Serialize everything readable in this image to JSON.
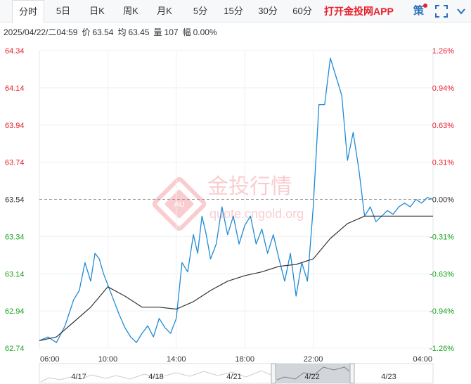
{
  "tabs": [
    {
      "label": "分时",
      "active": true
    },
    {
      "label": "5日",
      "active": false
    },
    {
      "label": "日K",
      "active": false
    },
    {
      "label": "周K",
      "active": false
    },
    {
      "label": "月K",
      "active": false
    },
    {
      "label": "5分",
      "active": false
    },
    {
      "label": "15分",
      "active": false
    },
    {
      "label": "30分",
      "active": false
    },
    {
      "label": "60分",
      "active": false
    }
  ],
  "app_link": "打开金投网APP",
  "policy_icon": "策",
  "icons": {
    "fullscreen": "fullscreen-icon",
    "more": "chevron-down-icon"
  },
  "info": {
    "datetime": "2025/04/22/二04:59",
    "price_label": "价",
    "price": "63.54",
    "avg_label": "均",
    "avg": "63.45",
    "volume_label": "量",
    "volume": "107",
    "change_label": "幅",
    "change": "0.00%"
  },
  "watermark": {
    "cn": "金投行情",
    "en": "quote.cngold.org",
    "logo": "AU"
  },
  "colors": {
    "up": "#e8202c",
    "down": "#17a31b",
    "neutral": "#333333",
    "price_line": "#1f8bd6",
    "avg_line": "#333333"
  },
  "navigator": {
    "dates": [
      "4/17",
      "4/18",
      "4/21",
      "4/22",
      "4/23"
    ],
    "selected": "4/22"
  },
  "chart_data": {
    "type": "line",
    "title": "",
    "y_labels_left": [
      "64.34",
      "64.14",
      "63.94",
      "63.74",
      "63.54",
      "63.34",
      "63.14",
      "62.94",
      "62.74"
    ],
    "y_labels_right": [
      "1.26%",
      "0.94%",
      "0.63%",
      "0.31%",
      "0.00%",
      "-0.31%",
      "-0.63%",
      "-0.94%",
      "-1.26%"
    ],
    "x_labels": [
      "06:00",
      "10:00",
      "14:00",
      "18:00",
      "22:00",
      "04:00"
    ],
    "ylim": [
      62.74,
      64.34
    ],
    "prev_close": 63.54,
    "x_range": [
      "06:00",
      "05:00"
    ],
    "series": [
      {
        "kind": "price",
        "x": [
          "06:00",
          "06:30",
          "07:00",
          "07:30",
          "08:00",
          "08:20",
          "08:40",
          "09:00",
          "09:15",
          "09:30",
          "09:45",
          "10:00",
          "10:20",
          "10:40",
          "11:00",
          "11:20",
          "11:40",
          "12:00",
          "12:20",
          "12:40",
          "13:00",
          "13:20",
          "13:40",
          "14:00",
          "14:20",
          "14:40",
          "15:00",
          "15:15",
          "15:30",
          "15:45",
          "16:00",
          "16:20",
          "16:40",
          "17:00",
          "17:20",
          "17:40",
          "18:00",
          "18:20",
          "18:40",
          "19:00",
          "19:20",
          "19:40",
          "20:00",
          "20:20",
          "20:40",
          "21:00",
          "21:20",
          "21:40",
          "22:00",
          "22:20",
          "22:40",
          "23:00",
          "23:20",
          "23:40",
          "00:00",
          "00:20",
          "00:40",
          "01:00",
          "01:20",
          "01:40",
          "02:00",
          "02:20",
          "02:40",
          "03:00",
          "03:20",
          "03:40",
          "04:00",
          "04:20",
          "04:40",
          "05:00"
        ],
        "y": [
          62.78,
          62.8,
          62.77,
          62.86,
          63.0,
          63.05,
          63.2,
          63.1,
          63.25,
          63.22,
          63.14,
          63.08,
          63.0,
          62.92,
          62.85,
          62.8,
          62.77,
          62.82,
          62.86,
          62.8,
          62.9,
          62.85,
          62.82,
          62.9,
          63.2,
          63.15,
          63.35,
          63.25,
          63.45,
          63.35,
          63.22,
          63.3,
          63.5,
          63.35,
          63.45,
          63.3,
          63.4,
          63.45,
          63.3,
          63.38,
          63.25,
          63.35,
          63.22,
          63.1,
          63.25,
          63.02,
          63.2,
          63.1,
          63.5,
          64.05,
          64.05,
          64.3,
          64.2,
          64.1,
          63.75,
          63.9,
          63.7,
          63.45,
          63.5,
          63.42,
          63.45,
          63.48,
          63.46,
          63.5,
          63.52,
          63.5,
          63.54,
          63.52,
          63.55,
          63.54
        ]
      },
      {
        "kind": "average",
        "x": [
          "06:00",
          "07:00",
          "08:00",
          "09:00",
          "10:00",
          "11:00",
          "12:00",
          "13:00",
          "14:00",
          "15:00",
          "16:00",
          "17:00",
          "18:00",
          "19:00",
          "20:00",
          "21:00",
          "22:00",
          "23:00",
          "00:00",
          "01:00",
          "02:00",
          "03:00",
          "04:00",
          "05:00"
        ],
        "y": [
          62.78,
          62.8,
          62.88,
          62.96,
          63.07,
          63.02,
          62.96,
          62.96,
          62.95,
          62.99,
          63.05,
          63.1,
          63.13,
          63.15,
          63.18,
          63.19,
          63.22,
          63.33,
          63.41,
          63.45,
          63.45,
          63.45,
          63.45,
          63.45
        ]
      }
    ]
  }
}
